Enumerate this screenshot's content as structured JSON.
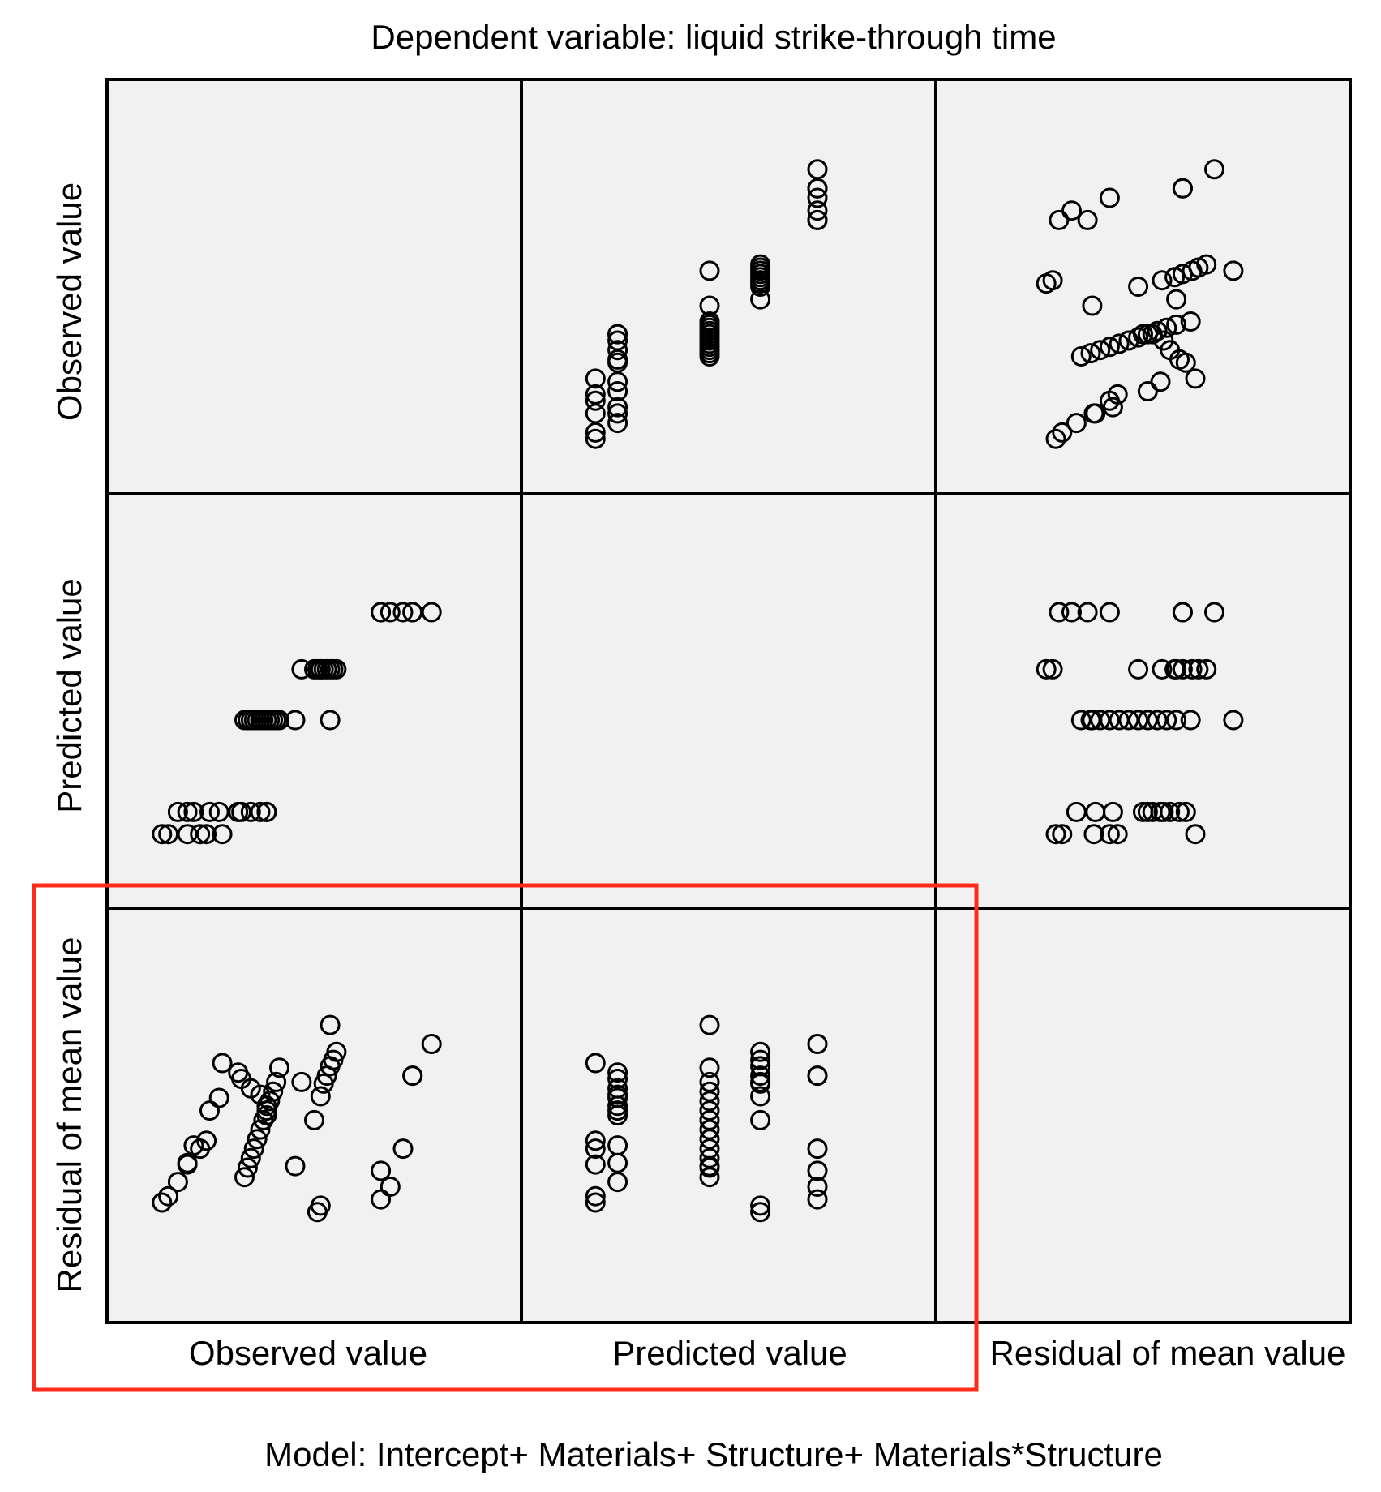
{
  "chart_data": {
    "type": "scatter",
    "title": "Dependent variable: liquid strike-through time",
    "footer": "Model: Intercept+ Materials+ Structure+ Materials*Structure",
    "variables": [
      "Observed value",
      "Predicted value",
      "Residual of mean value"
    ],
    "row_labels": [
      "Observed value",
      "Predicted value",
      "Residual of mean value"
    ],
    "column_labels": [
      "Observed value",
      "Predicted value",
      "Residual of mean value"
    ],
    "axes": {
      "observed": [
        0,
        100
      ],
      "predicted": [
        0,
        100
      ],
      "residual": [
        -100,
        100
      ]
    },
    "grid": false,
    "highlight": {
      "rows": [
        2
      ],
      "columns": [
        0,
        1
      ],
      "color": "#ff2a1a"
    },
    "colors": {
      "panel_bg": "#f1f1f1",
      "marker_stroke": "#000000",
      "marker_fill": "none",
      "highlight": "#ff2a1a"
    },
    "points": [
      {
        "observed": 2,
        "predicted": 8,
        "residual": -55
      },
      {
        "observed": 4,
        "predicted": 8,
        "residual": -51
      },
      {
        "observed": 10,
        "predicted": 8,
        "residual": -31
      },
      {
        "observed": 14,
        "predicted": 8,
        "residual": -21
      },
      {
        "observed": 16,
        "predicted": 8,
        "residual": -16
      },
      {
        "observed": 21,
        "predicted": 8,
        "residual": 33
      },
      {
        "observed": 7,
        "predicted": 15,
        "residual": -42
      },
      {
        "observed": 10,
        "predicted": 15,
        "residual": -30
      },
      {
        "observed": 12,
        "predicted": 15,
        "residual": -19
      },
      {
        "observed": 17,
        "predicted": 15,
        "residual": 3
      },
      {
        "observed": 20,
        "predicted": 15,
        "residual": 11
      },
      {
        "observed": 26,
        "predicted": 15,
        "residual": 27
      },
      {
        "observed": 27,
        "predicted": 15,
        "residual": 23
      },
      {
        "observed": 30,
        "predicted": 15,
        "residual": 17
      },
      {
        "observed": 33,
        "predicted": 15,
        "residual": 13
      },
      {
        "observed": 35,
        "predicted": 15,
        "residual": 6
      },
      {
        "observed": 35,
        "predicted": 15,
        "residual": 0
      },
      {
        "observed": 28,
        "predicted": 44,
        "residual": -39
      },
      {
        "observed": 29,
        "predicted": 44,
        "residual": -33
      },
      {
        "observed": 30,
        "predicted": 44,
        "residual": -27
      },
      {
        "observed": 31,
        "predicted": 44,
        "residual": -21
      },
      {
        "observed": 32,
        "predicted": 44,
        "residual": -15
      },
      {
        "observed": 33,
        "predicted": 44,
        "residual": -9
      },
      {
        "observed": 34,
        "predicted": 44,
        "residual": -3
      },
      {
        "observed": 35,
        "predicted": 44,
        "residual": 3
      },
      {
        "observed": 36,
        "predicted": 44,
        "residual": 9
      },
      {
        "observed": 37,
        "predicted": 44,
        "residual": 15
      },
      {
        "observed": 38,
        "predicted": 44,
        "residual": 21
      },
      {
        "observed": 39,
        "predicted": 44,
        "residual": 30
      },
      {
        "observed": 44,
        "predicted": 44,
        "residual": -32
      },
      {
        "observed": 55,
        "predicted": 44,
        "residual": 57
      },
      {
        "observed": 46,
        "predicted": 60,
        "residual": 21
      },
      {
        "observed": 50,
        "predicted": 60,
        "residual": -3
      },
      {
        "observed": 52,
        "predicted": 60,
        "residual": 12
      },
      {
        "observed": 53,
        "predicted": 60,
        "residual": 20
      },
      {
        "observed": 54,
        "predicted": 60,
        "residual": 25
      },
      {
        "observed": 55,
        "predicted": 60,
        "residual": 31
      },
      {
        "observed": 56,
        "predicted": 60,
        "residual": 35
      },
      {
        "observed": 57,
        "predicted": 60,
        "residual": 40
      },
      {
        "observed": 52,
        "predicted": 60,
        "residual": -57
      },
      {
        "observed": 51,
        "predicted": 60,
        "residual": -61
      },
      {
        "observed": 74,
        "predicted": 78,
        "residual": -45
      },
      {
        "observed": 71,
        "predicted": 78,
        "residual": -35
      },
      {
        "observed": 71,
        "predicted": 78,
        "residual": -53
      },
      {
        "observed": 78,
        "predicted": 78,
        "residual": -21
      },
      {
        "observed": 81,
        "predicted": 78,
        "residual": 25
      },
      {
        "observed": 81,
        "predicted": 78,
        "residual": 25
      },
      {
        "observed": 87,
        "predicted": 78,
        "residual": 45
      }
    ]
  }
}
